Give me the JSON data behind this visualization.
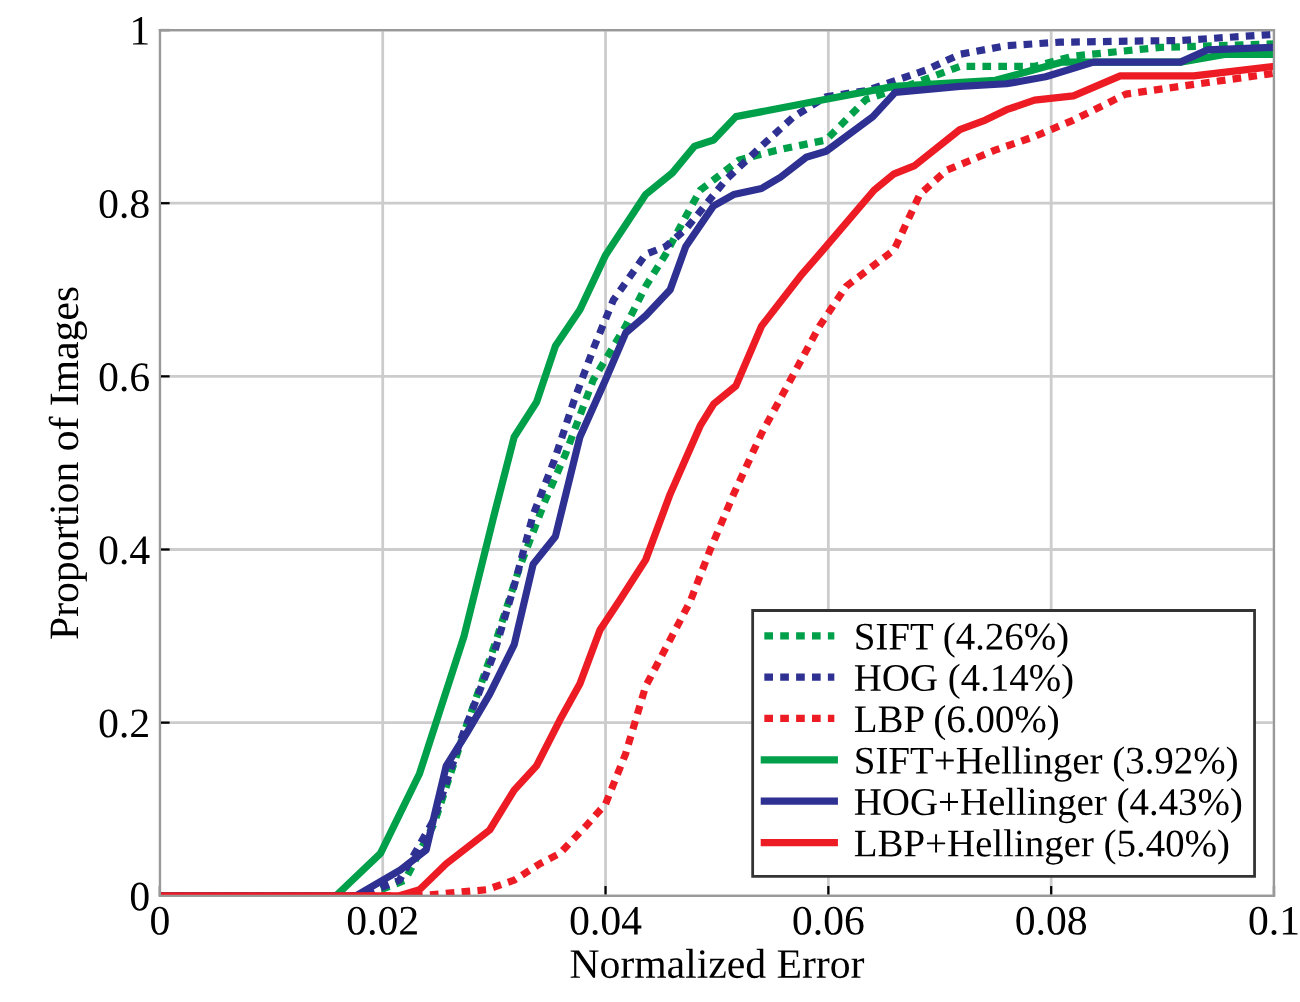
{
  "chart_data": {
    "type": "line",
    "xlabel": "Normalized Error",
    "ylabel": "Proportion of Images",
    "xlim": [
      0,
      0.1
    ],
    "ylim": [
      0,
      1
    ],
    "xticks": [
      0,
      0.02,
      0.04,
      0.06,
      0.08,
      0.1
    ],
    "yticks": [
      0,
      0.2,
      0.4,
      0.6,
      0.8,
      1
    ],
    "grid": true,
    "legend": "bottom right",
    "marker": "none",
    "series": [
      {
        "name": "SIFT (4.26%)",
        "color": "#00a04a",
        "line_style": "dotted",
        "x": [
          0,
          0.0185,
          0.022,
          0.0246,
          0.0275,
          0.03,
          0.0323,
          0.0346,
          0.0364,
          0.0389,
          0.0418,
          0.0436,
          0.0454,
          0.047,
          0.0485,
          0.052,
          0.0553,
          0.0598,
          0.0634,
          0.067,
          0.0718,
          0.0785,
          0.082,
          0.0898,
          0.1
        ],
        "values": [
          0,
          0,
          0.018,
          0.083,
          0.196,
          0.288,
          0.38,
          0.457,
          0.51,
          0.596,
          0.658,
          0.704,
          0.741,
          0.78,
          0.815,
          0.85,
          0.861,
          0.873,
          0.92,
          0.935,
          0.958,
          0.958,
          0.97,
          0.98,
          0.984
        ]
      },
      {
        "name": "HOG (4.14%)",
        "color": "#2e3192",
        "line_style": "dotted",
        "x": [
          0,
          0.018,
          0.0215,
          0.0246,
          0.027,
          0.03,
          0.0318,
          0.0335,
          0.0354,
          0.0372,
          0.039,
          0.0407,
          0.0436,
          0.0454,
          0.0472,
          0.0508,
          0.054,
          0.0569,
          0.0598,
          0.0634,
          0.0688,
          0.0718,
          0.076,
          0.0808,
          0.0916,
          0.1
        ],
        "values": [
          0,
          0,
          0.018,
          0.088,
          0.18,
          0.28,
          0.358,
          0.44,
          0.503,
          0.573,
          0.635,
          0.688,
          0.741,
          0.75,
          0.77,
          0.827,
          0.866,
          0.9,
          0.923,
          0.93,
          0.954,
          0.972,
          0.982,
          0.986,
          0.988,
          0.995
        ]
      },
      {
        "name": "LBP (6.00%)",
        "color": "#ed1c24",
        "line_style": "dotted",
        "x": [
          0,
          0.0233,
          0.0293,
          0.0318,
          0.0341,
          0.0359,
          0.0382,
          0.04,
          0.0418,
          0.0436,
          0.0476,
          0.0494,
          0.0515,
          0.054,
          0.0569,
          0.0592,
          0.0616,
          0.0659,
          0.0682,
          0.0706,
          0.0749,
          0.0785,
          0.082,
          0.0867,
          0.0916,
          0.1
        ],
        "values": [
          0,
          0,
          0.007,
          0.018,
          0.037,
          0.049,
          0.08,
          0.106,
          0.164,
          0.242,
          0.34,
          0.4,
          0.464,
          0.534,
          0.603,
          0.658,
          0.704,
          0.746,
          0.81,
          0.838,
          0.861,
          0.877,
          0.896,
          0.926,
          0.935,
          0.95
        ]
      },
      {
        "name": "SIFT+Hellinger (3.92%)",
        "color": "#00a04a",
        "line_style": "solid",
        "x": [
          0,
          0.0158,
          0.0198,
          0.0233,
          0.0273,
          0.03,
          0.0318,
          0.0338,
          0.0355,
          0.0377,
          0.04,
          0.0436,
          0.046,
          0.048,
          0.0497,
          0.0517,
          0.0598,
          0.0659,
          0.075,
          0.081,
          0.0916,
          0.0957,
          0.1
        ],
        "values": [
          0,
          0,
          0.049,
          0.141,
          0.3,
          0.44,
          0.53,
          0.57,
          0.635,
          0.677,
          0.74,
          0.81,
          0.835,
          0.866,
          0.873,
          0.9,
          0.92,
          0.935,
          0.942,
          0.963,
          0.963,
          0.972,
          0.972
        ]
      },
      {
        "name": "HOG+Hellinger (4.43%)",
        "color": "#2e3192",
        "line_style": "solid",
        "x": [
          0,
          0.0176,
          0.0216,
          0.0239,
          0.0257,
          0.0275,
          0.0296,
          0.0318,
          0.0335,
          0.0355,
          0.0377,
          0.04,
          0.0418,
          0.0436,
          0.0458,
          0.0472,
          0.0497,
          0.0515,
          0.054,
          0.0557,
          0.058,
          0.0598,
          0.064,
          0.066,
          0.0718,
          0.076,
          0.0795,
          0.0838,
          0.0916,
          0.094,
          0.1
        ],
        "values": [
          0,
          0,
          0.03,
          0.053,
          0.15,
          0.187,
          0.233,
          0.29,
          0.383,
          0.415,
          0.53,
          0.596,
          0.65,
          0.67,
          0.7,
          0.75,
          0.797,
          0.81,
          0.817,
          0.83,
          0.853,
          0.86,
          0.9,
          0.928,
          0.935,
          0.938,
          0.946,
          0.963,
          0.963,
          0.977,
          0.98
        ]
      },
      {
        "name": "LBP+Hellinger (5.40%)",
        "color": "#ed1c24",
        "line_style": "solid",
        "x": [
          0,
          0.0215,
          0.0233,
          0.0257,
          0.0296,
          0.0318,
          0.0338,
          0.0359,
          0.0377,
          0.0395,
          0.0413,
          0.0436,
          0.0458,
          0.0485,
          0.0497,
          0.0517,
          0.054,
          0.0575,
          0.0598,
          0.0641,
          0.0659,
          0.0677,
          0.0718,
          0.0741,
          0.076,
          0.0785,
          0.082,
          0.0862,
          0.0928,
          0.1
        ],
        "values": [
          0,
          0,
          0.007,
          0.037,
          0.076,
          0.122,
          0.15,
          0.203,
          0.245,
          0.307,
          0.342,
          0.388,
          0.464,
          0.543,
          0.568,
          0.589,
          0.658,
          0.716,
          0.75,
          0.815,
          0.834,
          0.843,
          0.885,
          0.896,
          0.908,
          0.919,
          0.924,
          0.947,
          0.947,
          0.958
        ]
      }
    ]
  }
}
